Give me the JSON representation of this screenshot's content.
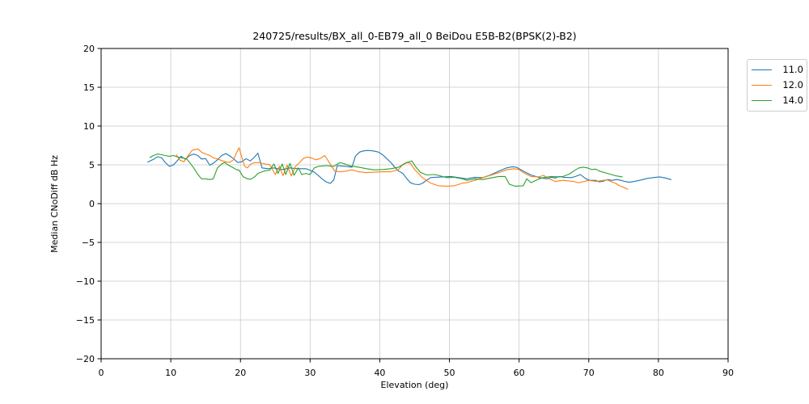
{
  "chart_data": {
    "type": "line",
    "title": "240725/results/BX_all_0-EB79_all_0 BeiDou E5B-B2(BPSK(2)-B2)",
    "xlabel": "Elevation (deg)",
    "ylabel": "Median CNoDiff dB Hz",
    "xlim": [
      0,
      90
    ],
    "ylim": [
      -20,
      20
    ],
    "xticks": [
      0,
      10,
      20,
      30,
      40,
      50,
      60,
      70,
      80,
      90
    ],
    "yticks": [
      20,
      15,
      10,
      5,
      0,
      -5,
      -10,
      -15,
      -20
    ],
    "xticklabels": [
      "0",
      "10",
      "20",
      "30",
      "40",
      "50",
      "60",
      "70",
      "80",
      "90"
    ],
    "yticklabels": [
      "20",
      "15",
      "10",
      "5",
      "0",
      "−5",
      "−10",
      "−15",
      "−20"
    ],
    "grid": true,
    "grid_color": "#c9c9c9",
    "spine_color": "#000000",
    "legend_position": "outside-right",
    "series": [
      {
        "name": "11.0",
        "color": "#1f77b4",
        "points": [
          [
            6.7,
            5.35
          ],
          [
            7.5,
            5.7
          ],
          [
            8.1,
            6.05
          ],
          [
            8.7,
            5.9
          ],
          [
            9.2,
            5.3
          ],
          [
            9.8,
            4.8
          ],
          [
            10.4,
            5.0
          ],
          [
            11,
            5.6
          ],
          [
            11.5,
            6.1
          ],
          [
            12.1,
            5.7
          ],
          [
            12.7,
            6.2
          ],
          [
            13.3,
            6.4
          ],
          [
            13.9,
            6.2
          ],
          [
            14.4,
            5.75
          ],
          [
            15,
            5.8
          ],
          [
            15.6,
            4.95
          ],
          [
            16.1,
            5.2
          ],
          [
            16.7,
            5.65
          ],
          [
            17.3,
            6.2
          ],
          [
            17.9,
            6.45
          ],
          [
            18.4,
            6.2
          ],
          [
            19,
            5.8
          ],
          [
            19.6,
            5.3
          ],
          [
            20.2,
            5.4
          ],
          [
            20.8,
            5.8
          ],
          [
            21.4,
            5.5
          ],
          [
            21.9,
            5.9
          ],
          [
            22.5,
            6.5
          ],
          [
            23.1,
            4.6
          ],
          [
            24,
            4.5
          ],
          [
            24.8,
            4.6
          ],
          [
            26,
            4.4
          ],
          [
            27.1,
            4.6
          ],
          [
            28.2,
            4.5
          ],
          [
            29.4,
            4.5
          ],
          [
            30,
            4.3
          ],
          [
            30.6,
            4.05
          ],
          [
            31.2,
            3.6
          ],
          [
            31.7,
            3.2
          ],
          [
            32.3,
            2.8
          ],
          [
            32.9,
            2.6
          ],
          [
            33.4,
            3.05
          ],
          [
            33.9,
            4.9
          ],
          [
            34.5,
            4.85
          ],
          [
            35.2,
            4.8
          ],
          [
            36,
            4.7
          ],
          [
            36.5,
            6.1
          ],
          [
            37.1,
            6.65
          ],
          [
            37.7,
            6.8
          ],
          [
            38.3,
            6.85
          ],
          [
            39,
            6.8
          ],
          [
            39.8,
            6.65
          ],
          [
            40.4,
            6.3
          ],
          [
            41,
            5.8
          ],
          [
            41.6,
            5.3
          ],
          [
            42.1,
            4.75
          ],
          [
            42.7,
            4.2
          ],
          [
            43.3,
            3.9
          ],
          [
            43.9,
            3.2
          ],
          [
            44.4,
            2.7
          ],
          [
            45,
            2.5
          ],
          [
            45.6,
            2.45
          ],
          [
            46.1,
            2.6
          ],
          [
            46.7,
            3.0
          ],
          [
            47.3,
            3.35
          ],
          [
            47.9,
            3.4
          ],
          [
            49,
            3.45
          ],
          [
            50.2,
            3.5
          ],
          [
            51.3,
            3.35
          ],
          [
            52.5,
            3.2
          ],
          [
            53.6,
            3.4
          ],
          [
            54.8,
            3.35
          ],
          [
            55.9,
            3.7
          ],
          [
            57.1,
            4.2
          ],
          [
            58.2,
            4.6
          ],
          [
            59,
            4.75
          ],
          [
            59.6,
            4.7
          ],
          [
            60.6,
            4.2
          ],
          [
            61.7,
            3.7
          ],
          [
            62.9,
            3.35
          ],
          [
            64,
            3.2
          ],
          [
            64.6,
            3.4
          ],
          [
            65.2,
            3.3
          ],
          [
            65.8,
            3.5
          ],
          [
            66.5,
            3.4
          ],
          [
            67.5,
            3.35
          ],
          [
            68.1,
            3.5
          ],
          [
            68.8,
            3.75
          ],
          [
            69.6,
            3.2
          ],
          [
            70.2,
            3.0
          ],
          [
            71,
            3.0
          ],
          [
            71.5,
            2.8
          ],
          [
            72.1,
            2.9
          ],
          [
            72.7,
            3.1
          ],
          [
            73.3,
            3.0
          ],
          [
            74,
            3.1
          ],
          [
            74.6,
            3.0
          ],
          [
            75.2,
            2.85
          ],
          [
            75.8,
            2.75
          ],
          [
            76.5,
            2.85
          ],
          [
            77.3,
            3.0
          ],
          [
            78.4,
            3.25
          ],
          [
            79.6,
            3.4
          ],
          [
            80.2,
            3.45
          ],
          [
            81,
            3.3
          ],
          [
            81.8,
            3.1
          ]
        ]
      },
      {
        "name": "12.0",
        "color": "#ff7f0e",
        "points": [
          [
            10.8,
            6.3
          ],
          [
            11.3,
            5.6
          ],
          [
            11.9,
            5.4
          ],
          [
            12.5,
            6.2
          ],
          [
            13.1,
            6.9
          ],
          [
            13.9,
            7.05
          ],
          [
            14.4,
            6.65
          ],
          [
            15,
            6.4
          ],
          [
            15.6,
            6.2
          ],
          [
            16.1,
            5.9
          ],
          [
            16.7,
            5.75
          ],
          [
            17.3,
            5.55
          ],
          [
            17.9,
            5.4
          ],
          [
            18.4,
            5.3
          ],
          [
            19,
            5.65
          ],
          [
            19.4,
            6.5
          ],
          [
            19.8,
            7.2
          ],
          [
            20.2,
            6.0
          ],
          [
            20.6,
            4.8
          ],
          [
            21,
            4.6
          ],
          [
            21.5,
            5.1
          ],
          [
            21.9,
            5.25
          ],
          [
            22.5,
            5.3
          ],
          [
            23.6,
            5.1
          ],
          [
            24.2,
            5.05
          ],
          [
            25,
            3.75
          ],
          [
            25.6,
            4.8
          ],
          [
            26.1,
            3.6
          ],
          [
            26.7,
            4.95
          ],
          [
            27.3,
            3.55
          ],
          [
            27.9,
            4.8
          ],
          [
            28.5,
            5.3
          ],
          [
            29,
            5.8
          ],
          [
            29.6,
            6.0
          ],
          [
            30.2,
            5.9
          ],
          [
            30.8,
            5.65
          ],
          [
            31.4,
            5.8
          ],
          [
            32.1,
            6.2
          ],
          [
            32.5,
            5.65
          ],
          [
            33.1,
            4.8
          ],
          [
            33.5,
            4.2
          ],
          [
            34.3,
            4.1
          ],
          [
            35.2,
            4.2
          ],
          [
            36,
            4.35
          ],
          [
            37,
            4.1
          ],
          [
            38.1,
            4.0
          ],
          [
            39.2,
            4.05
          ],
          [
            40.4,
            4.1
          ],
          [
            41.6,
            4.1
          ],
          [
            42.7,
            4.4
          ],
          [
            43.3,
            5.05
          ],
          [
            43.8,
            5.3
          ],
          [
            44.4,
            5.2
          ],
          [
            45,
            4.4
          ],
          [
            46.1,
            3.35
          ],
          [
            47.3,
            2.65
          ],
          [
            48.4,
            2.3
          ],
          [
            49.6,
            2.25
          ],
          [
            50.7,
            2.3
          ],
          [
            51.9,
            2.65
          ],
          [
            52.5,
            2.7
          ],
          [
            53.6,
            3.0
          ],
          [
            54.8,
            3.35
          ],
          [
            55.9,
            3.65
          ],
          [
            57.1,
            4.0
          ],
          [
            58.2,
            4.35
          ],
          [
            59.2,
            4.5
          ],
          [
            60,
            4.4
          ],
          [
            60.6,
            4.0
          ],
          [
            61.7,
            3.5
          ],
          [
            62.9,
            3.45
          ],
          [
            63.5,
            3.65
          ],
          [
            64.3,
            3.2
          ],
          [
            65.2,
            2.85
          ],
          [
            66.3,
            3.0
          ],
          [
            67.8,
            2.85
          ],
          [
            68.6,
            2.7
          ],
          [
            70,
            3.0
          ],
          [
            71.1,
            2.85
          ],
          [
            72.1,
            3.0
          ],
          [
            72.7,
            3.05
          ],
          [
            73.3,
            2.8
          ],
          [
            73.8,
            2.65
          ],
          [
            74.4,
            2.3
          ],
          [
            75,
            2.1
          ],
          [
            75.6,
            1.85
          ]
        ]
      },
      {
        "name": "14.0",
        "color": "#2ca02c",
        "points": [
          [
            7,
            5.95
          ],
          [
            7.5,
            6.2
          ],
          [
            8.1,
            6.4
          ],
          [
            8.7,
            6.3
          ],
          [
            9.2,
            6.2
          ],
          [
            9.8,
            6.1
          ],
          [
            10.4,
            6.2
          ],
          [
            11,
            6.0
          ],
          [
            11.7,
            5.9
          ],
          [
            12.3,
            5.75
          ],
          [
            12.7,
            5.3
          ],
          [
            13.3,
            4.6
          ],
          [
            13.9,
            3.75
          ],
          [
            14.4,
            3.2
          ],
          [
            15,
            3.2
          ],
          [
            15.6,
            3.1
          ],
          [
            16.1,
            3.2
          ],
          [
            16.7,
            4.6
          ],
          [
            17.3,
            5.1
          ],
          [
            17.7,
            5.3
          ],
          [
            18.3,
            4.95
          ],
          [
            18.8,
            4.7
          ],
          [
            19.4,
            4.4
          ],
          [
            19.8,
            4.3
          ],
          [
            20.4,
            3.45
          ],
          [
            21,
            3.2
          ],
          [
            21.5,
            3.15
          ],
          [
            22.1,
            3.5
          ],
          [
            22.5,
            3.9
          ],
          [
            23.1,
            4.1
          ],
          [
            23.6,
            4.25
          ],
          [
            24.2,
            4.3
          ],
          [
            24.8,
            5.1
          ],
          [
            25.4,
            3.9
          ],
          [
            26,
            5.1
          ],
          [
            26.5,
            3.75
          ],
          [
            27.1,
            5.2
          ],
          [
            27.7,
            3.65
          ],
          [
            28.3,
            4.6
          ],
          [
            28.8,
            3.75
          ],
          [
            29.4,
            3.9
          ],
          [
            30,
            3.75
          ],
          [
            30.6,
            4.6
          ],
          [
            31.2,
            4.8
          ],
          [
            32.3,
            4.9
          ],
          [
            33.4,
            4.8
          ],
          [
            34.3,
            5.3
          ],
          [
            35,
            5.1
          ],
          [
            35.8,
            4.85
          ],
          [
            37,
            4.7
          ],
          [
            38.1,
            4.5
          ],
          [
            39.2,
            4.35
          ],
          [
            40.4,
            4.4
          ],
          [
            41.6,
            4.5
          ],
          [
            42.7,
            4.7
          ],
          [
            43.3,
            5.0
          ],
          [
            43.9,
            5.3
          ],
          [
            44.6,
            5.5
          ],
          [
            45.2,
            4.7
          ],
          [
            45.8,
            4.05
          ],
          [
            46.7,
            3.7
          ],
          [
            47.9,
            3.75
          ],
          [
            49,
            3.5
          ],
          [
            49.6,
            3.35
          ],
          [
            50.7,
            3.4
          ],
          [
            51.9,
            3.2
          ],
          [
            52.5,
            3.0
          ],
          [
            53.6,
            3.2
          ],
          [
            54.8,
            3.1
          ],
          [
            55.9,
            3.3
          ],
          [
            57.1,
            3.5
          ],
          [
            58,
            3.5
          ],
          [
            58.6,
            2.5
          ],
          [
            59.4,
            2.25
          ],
          [
            60.6,
            2.3
          ],
          [
            61.1,
            3.2
          ],
          [
            61.7,
            2.7
          ],
          [
            62.9,
            3.2
          ],
          [
            63.5,
            3.35
          ],
          [
            64.6,
            3.5
          ],
          [
            65.8,
            3.45
          ],
          [
            66.3,
            3.5
          ],
          [
            67.2,
            3.8
          ],
          [
            68,
            4.3
          ],
          [
            68.6,
            4.6
          ],
          [
            69.2,
            4.7
          ],
          [
            69.8,
            4.6
          ],
          [
            70.4,
            4.4
          ],
          [
            71,
            4.45
          ],
          [
            71.5,
            4.2
          ],
          [
            72.7,
            3.9
          ],
          [
            73.8,
            3.6
          ],
          [
            74.8,
            3.45
          ]
        ]
      }
    ]
  }
}
